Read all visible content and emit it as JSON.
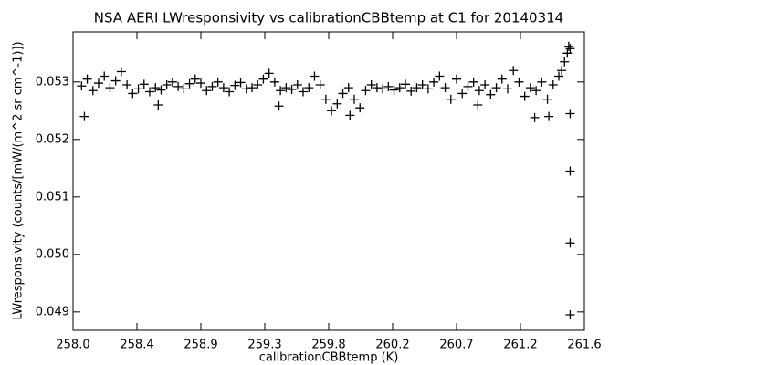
{
  "chart_data": {
    "type": "scatter",
    "title": "NSA AERI LWresponsivity vs calibrationCBBtemp at C1 for 20140314",
    "xlabel": "calibrationCBBtemp (K)",
    "ylabel": "LWresponsivity (counts/[mW/(m^2 sr cm^-1)])",
    "color": "#000000",
    "xlim": [
      258.0,
      261.6
    ],
    "xticks": [
      {
        "value": 258.0,
        "label": "258.0"
      },
      {
        "value": 258.45,
        "label": "258.4"
      },
      258.9,
      {
        "value": 259.35,
        "label": "259.3"
      },
      259.8,
      {
        "value": 260.25,
        "label": "260.2"
      },
      260.7,
      {
        "value": 261.15,
        "label": "261.2"
      },
      261.6
    ],
    "ylim": [
      0.04868,
      0.05387
    ],
    "yticks": [
      0.049,
      {
        "value": 0.05,
        "label": "0.050"
      },
      0.051,
      0.052,
      0.053
    ],
    "x": [
      258.06,
      258.1,
      258.14,
      258.18,
      258.22,
      258.26,
      258.3,
      258.34,
      258.38,
      258.42,
      258.46,
      258.5,
      258.54,
      258.58,
      258.62,
      258.66,
      258.7,
      258.74,
      258.78,
      258.82,
      258.86,
      258.9,
      258.94,
      258.98,
      259.02,
      259.06,
      259.1,
      259.14,
      259.18,
      259.22,
      259.26,
      259.3,
      259.34,
      259.38,
      259.42,
      259.46,
      259.5,
      259.54,
      259.58,
      259.62,
      259.66,
      259.7,
      259.74,
      259.78,
      259.82,
      259.86,
      259.9,
      259.94,
      259.98,
      260.02,
      260.06,
      260.1,
      260.14,
      260.18,
      260.22,
      260.26,
      260.3,
      260.34,
      260.38,
      260.42,
      260.46,
      260.5,
      260.54,
      260.58,
      260.62,
      260.66,
      260.7,
      260.74,
      260.78,
      260.82,
      260.86,
      260.9,
      260.94,
      260.98,
      261.02,
      261.06,
      261.1,
      261.14,
      261.18,
      261.22,
      261.26,
      261.3,
      261.34,
      261.38,
      261.42,
      261.44,
      261.46,
      261.48,
      261.49,
      261.5,
      261.5,
      261.5,
      261.5,
      261.5,
      258.08,
      258.6,
      259.45,
      259.95,
      260.85,
      261.25,
      261.35
    ],
    "values": [
      0.05293,
      0.05305,
      0.05285,
      0.05298,
      0.0531,
      0.0529,
      0.05302,
      0.05318,
      0.05295,
      0.0528,
      0.05288,
      0.05296,
      0.05283,
      0.0529,
      0.05286,
      0.05295,
      0.053,
      0.05292,
      0.05288,
      0.05297,
      0.05305,
      0.05298,
      0.05285,
      0.05292,
      0.053,
      0.0529,
      0.05283,
      0.05294,
      0.05299,
      0.05288,
      0.0529,
      0.05295,
      0.05305,
      0.05315,
      0.053,
      0.05285,
      0.0529,
      0.05287,
      0.05295,
      0.05283,
      0.0529,
      0.0531,
      0.05295,
      0.0527,
      0.0525,
      0.05262,
      0.0528,
      0.0529,
      0.0527,
      0.05255,
      0.05285,
      0.05295,
      0.0529,
      0.05288,
      0.05292,
      0.05286,
      0.0529,
      0.05296,
      0.05284,
      0.0529,
      0.05295,
      0.05288,
      0.053,
      0.0531,
      0.0529,
      0.0527,
      0.05305,
      0.0528,
      0.05292,
      0.053,
      0.05285,
      0.05295,
      0.05278,
      0.0529,
      0.05305,
      0.05288,
      0.0532,
      0.053,
      0.05275,
      0.0529,
      0.05285,
      0.053,
      0.0527,
      0.05295,
      0.0531,
      0.0532,
      0.05335,
      0.0535,
      0.05362,
      0.05358,
      0.05245,
      0.05145,
      0.0502,
      0.04895,
      0.0524,
      0.0526,
      0.05258,
      0.05242,
      0.0526,
      0.05238,
      0.0524
    ]
  }
}
